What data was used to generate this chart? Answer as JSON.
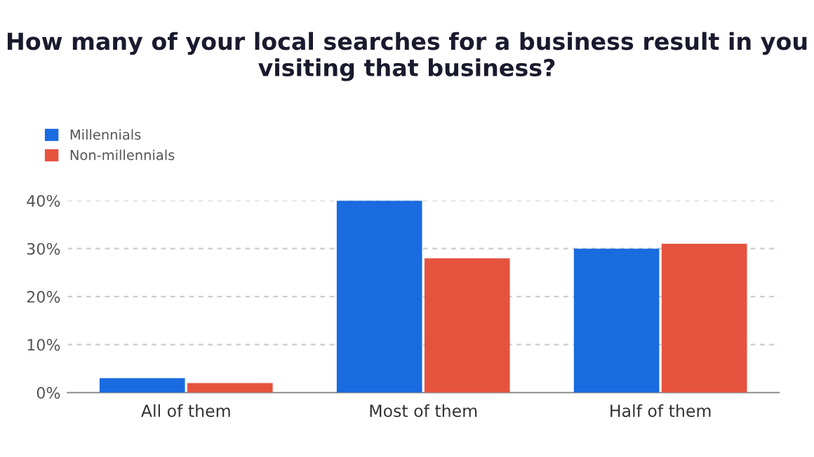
{
  "chart_data": {
    "type": "bar",
    "title": "How many of your local searches for a business result in you visiting that business?",
    "categories": [
      "All of them",
      "Most of them",
      "Half of them"
    ],
    "series": [
      {
        "name": "Millennials",
        "color": "#1a6be0",
        "values": [
          3,
          40,
          30
        ]
      },
      {
        "name": "Non-millennials",
        "color": "#e5533f",
        "values": [
          2,
          28,
          31
        ]
      }
    ],
    "ylim": [
      0,
      40
    ],
    "yticks": [
      {
        "value": 0,
        "label": "0%"
      },
      {
        "value": 10,
        "label": "10%"
      },
      {
        "value": 20,
        "label": "20%"
      },
      {
        "value": 30,
        "label": "30%"
      },
      {
        "value": 40,
        "label": "40%"
      }
    ],
    "grid": "y",
    "legend": "top left"
  }
}
